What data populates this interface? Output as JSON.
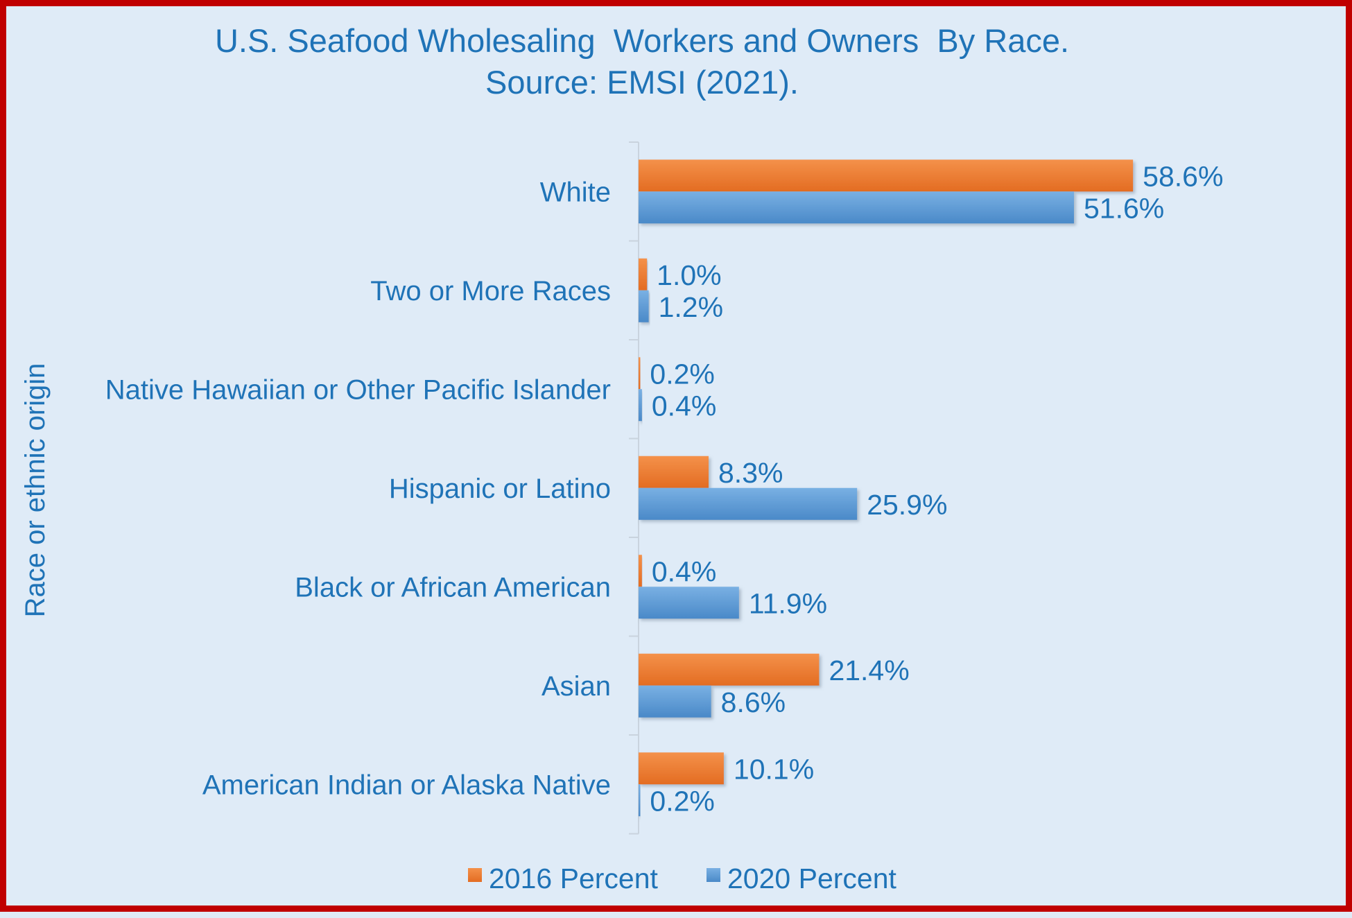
{
  "chart_data": {
    "type": "bar",
    "orientation": "horizontal",
    "title": "U.S. Seafood Wholesaling  Workers and Owners  By Race.",
    "subtitle": "Source: EMSI (2021).",
    "ylabel": "Race or ethnic origin",
    "xlabel": "",
    "categories": [
      "White",
      "Two or More Races",
      "Native Hawaiian or Other Pacific Islander",
      "Hispanic or Latino",
      "Black or African American",
      "Asian",
      "American Indian or Alaska Native"
    ],
    "series": [
      {
        "name": "2016 Percent",
        "color": "#ed7d31",
        "values": [
          58.6,
          1.0,
          0.2,
          8.3,
          0.4,
          21.4,
          10.1
        ],
        "labels": [
          "58.6%",
          "1.0%",
          "0.2%",
          "8.3%",
          "0.4%",
          "21.4%",
          "10.1%"
        ]
      },
      {
        "name": "2020 Percent",
        "color": "#5b9bd5",
        "values": [
          51.6,
          1.2,
          0.4,
          25.9,
          11.9,
          8.6,
          0.2
        ],
        "labels": [
          "51.6%",
          "1.2%",
          "0.4%",
          "25.9%",
          "11.9%",
          "8.6%",
          "0.2%"
        ]
      }
    ],
    "xlim": [
      0,
      85
    ],
    "grid": false,
    "legend_position": "bottom",
    "colors": {
      "frame": "#c00000",
      "background": "#dfebf7",
      "text": "#1f73b7"
    }
  }
}
